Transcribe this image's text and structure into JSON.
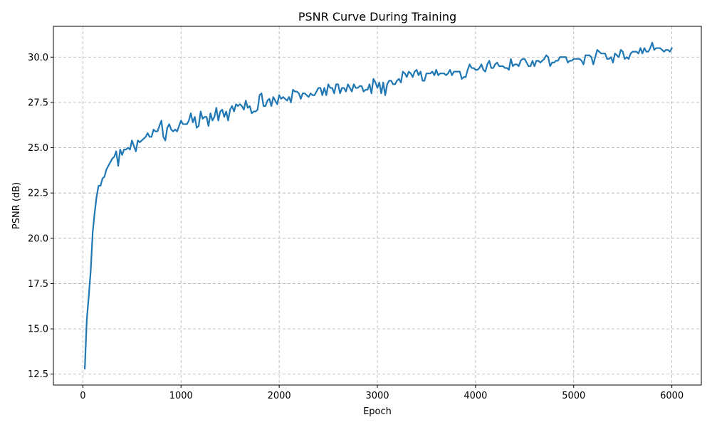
{
  "chart_data": {
    "type": "line",
    "title": "PSNR Curve During Training",
    "xlabel": "Epoch",
    "ylabel": "PSNR (dB)",
    "xlim": [
      -300,
      6300
    ],
    "ylim": [
      11.9,
      31.7
    ],
    "xticks": [
      0,
      1000,
      2000,
      3000,
      4000,
      5000,
      6000
    ],
    "xtick_labels": [
      "0",
      "1000",
      "2000",
      "3000",
      "4000",
      "5000",
      "6000"
    ],
    "yticks": [
      12.5,
      15.0,
      17.5,
      20.0,
      22.5,
      25.0,
      27.5,
      30.0
    ],
    "ytick_labels": [
      "12.5",
      "15.0",
      "17.5",
      "20.0",
      "22.5",
      "25.0",
      "27.5",
      "30.0"
    ],
    "grid": true,
    "color": "#1f77b4",
    "series": [
      {
        "x": [
          20,
          40,
          60,
          80,
          100,
          120,
          140,
          160,
          180,
          200,
          220,
          240,
          260,
          280,
          300,
          320,
          340,
          360,
          380,
          400,
          420,
          440,
          460,
          480,
          500,
          520,
          540,
          560,
          580,
          600,
          620,
          640,
          660,
          680,
          700,
          720,
          740,
          760,
          780,
          800,
          820,
          840,
          860,
          880,
          900,
          920,
          940,
          960,
          980,
          1000,
          1020,
          1040,
          1060,
          1080,
          1100,
          1120,
          1140,
          1160,
          1180,
          1200,
          1220,
          1240,
          1260,
          1280,
          1300,
          1320,
          1340,
          1360,
          1380,
          1400,
          1420,
          1440,
          1460,
          1480,
          1500,
          1520,
          1540,
          1560,
          1580,
          1600,
          1620,
          1640,
          1660,
          1680,
          1700,
          1720,
          1740,
          1760,
          1780,
          1800,
          1820,
          1840,
          1860,
          1880,
          1900,
          1920,
          1940,
          1960,
          1980,
          2000,
          2020,
          2040,
          2060,
          2080,
          2100,
          2120,
          2140,
          2160,
          2180,
          2200,
          2220,
          2240,
          2260,
          2280,
          2300,
          2320,
          2340,
          2360,
          2380,
          2400,
          2420,
          2440,
          2460,
          2480,
          2500,
          2520,
          2540,
          2560,
          2580,
          2600,
          2620,
          2640,
          2660,
          2680,
          2700,
          2720,
          2740,
          2760,
          2780,
          2800,
          2820,
          2840,
          2860,
          2880,
          2900,
          2920,
          2940,
          2960,
          2980,
          3000,
          3020,
          3040,
          3060,
          3080,
          3100,
          3120,
          3140,
          3160,
          3180,
          3200,
          3220,
          3240,
          3260,
          3280,
          3300,
          3320,
          3340,
          3360,
          3380,
          3400,
          3420,
          3440,
          3460,
          3480,
          3500,
          3520,
          3540,
          3560,
          3580,
          3600,
          3620,
          3640,
          3660,
          3680,
          3700,
          3720,
          3740,
          3760,
          3780,
          3800,
          3820,
          3840,
          3860,
          3880,
          3900,
          3920,
          3940,
          3960,
          3980,
          4000,
          4020,
          4040,
          4060,
          4080,
          4100,
          4120,
          4140,
          4160,
          4180,
          4200,
          4220,
          4240,
          4260,
          4280,
          4300,
          4320,
          4340,
          4360,
          4380,
          4400,
          4420,
          4440,
          4460,
          4480,
          4500,
          4520,
          4540,
          4560,
          4580,
          4600,
          4620,
          4640,
          4660,
          4680,
          4700,
          4720,
          4740,
          4760,
          4780,
          4800,
          4820,
          4840,
          4860,
          4880,
          4900,
          4920,
          4940,
          4960,
          4980,
          5000,
          5020,
          5040,
          5060,
          5080,
          5100,
          5120,
          5140,
          5160,
          5180,
          5200,
          5220,
          5240,
          5260,
          5280,
          5300,
          5320,
          5340,
          5360,
          5380,
          5400,
          5420,
          5440,
          5460,
          5480,
          5500,
          5520,
          5540,
          5560,
          5580,
          5600,
          5620,
          5640,
          5660,
          5680,
          5700,
          5720,
          5740,
          5760,
          5780,
          5800,
          5820,
          5840,
          5860,
          5880,
          5900,
          5920,
          5940,
          5960,
          5980,
          6000
        ],
        "y": [
          12.8,
          15.5,
          16.8,
          18.2,
          20.3,
          21.4,
          22.3,
          22.9,
          22.9,
          23.3,
          23.4,
          23.8,
          24.0,
          24.2,
          24.4,
          24.5,
          24.8,
          24.0,
          24.9,
          24.6,
          24.9,
          24.9,
          25.0,
          24.9,
          25.4,
          25.1,
          24.8,
          25.4,
          25.3,
          25.4,
          25.5,
          25.6,
          25.8,
          25.6,
          25.6,
          26.0,
          25.9,
          25.9,
          26.2,
          26.5,
          25.6,
          25.4,
          26.1,
          26.3,
          26.0,
          25.9,
          26.0,
          25.9,
          26.2,
          26.5,
          26.3,
          26.3,
          26.3,
          26.5,
          26.9,
          26.4,
          26.7,
          26.1,
          26.2,
          27.0,
          26.6,
          26.7,
          26.7,
          26.2,
          26.9,
          26.5,
          26.7,
          27.2,
          26.5,
          27.0,
          27.1,
          26.7,
          27.0,
          26.5,
          27.1,
          27.3,
          27.0,
          27.4,
          27.3,
          27.4,
          27.3,
          27.1,
          27.6,
          27.2,
          27.3,
          26.9,
          27.0,
          27.0,
          27.1,
          27.9,
          28.0,
          27.3,
          27.3,
          27.6,
          27.7,
          27.3,
          27.8,
          27.6,
          27.4,
          27.9,
          27.7,
          27.8,
          27.7,
          27.6,
          27.8,
          27.5,
          28.2,
          28.1,
          28.1,
          28.0,
          27.7,
          28.0,
          28.0,
          27.9,
          27.8,
          28.0,
          27.9,
          27.9,
          28.1,
          28.3,
          28.3,
          27.9,
          28.3,
          27.9,
          28.5,
          28.3,
          28.3,
          28.0,
          28.5,
          28.5,
          28.0,
          28.3,
          28.3,
          28.1,
          28.5,
          28.3,
          28.1,
          28.5,
          28.3,
          28.3,
          28.4,
          28.4,
          28.1,
          28.2,
          28.2,
          28.5,
          28.0,
          28.8,
          28.6,
          28.3,
          28.6,
          28.0,
          28.6,
          27.9,
          28.5,
          28.7,
          28.7,
          28.5,
          28.5,
          28.7,
          28.8,
          28.6,
          29.2,
          29.1,
          28.9,
          29.2,
          29.1,
          28.9,
          29.2,
          29.3,
          29.0,
          29.2,
          28.7,
          28.7,
          29.1,
          29.1,
          29.1,
          29.2,
          29.0,
          29.3,
          29.0,
          29.1,
          29.1,
          29.1,
          29.0,
          29.1,
          29.3,
          29.0,
          29.2,
          29.2,
          29.2,
          29.2,
          28.8,
          28.9,
          28.9,
          29.3,
          29.6,
          29.4,
          29.4,
          29.3,
          29.3,
          29.4,
          29.6,
          29.3,
          29.2,
          29.6,
          29.8,
          29.4,
          29.4,
          29.6,
          29.7,
          29.5,
          29.5,
          29.5,
          29.4,
          29.4,
          29.3,
          29.9,
          29.5,
          29.6,
          29.6,
          29.5,
          29.8,
          29.9,
          29.9,
          29.7,
          29.5,
          29.5,
          29.8,
          29.5,
          29.8,
          29.8,
          29.7,
          29.8,
          29.9,
          30.1,
          30.0,
          29.5,
          29.7,
          29.7,
          29.8,
          29.8,
          30.0,
          30.0,
          30.0,
          30.0,
          29.7,
          29.8,
          29.8,
          29.9,
          29.9,
          29.9,
          29.9,
          29.8,
          29.6,
          30.1,
          30.1,
          30.1,
          30.0,
          29.6,
          30.0,
          30.4,
          30.3,
          30.2,
          30.2,
          30.2,
          29.9,
          29.9,
          30.0,
          29.7,
          30.2,
          30.1,
          30.0,
          30.4,
          30.3,
          29.9,
          30.0,
          29.9,
          30.2,
          30.3,
          30.3,
          30.3,
          30.2,
          30.5,
          30.2,
          30.5,
          30.3,
          30.3,
          30.5,
          30.8,
          30.4,
          30.5,
          30.5,
          30.5,
          30.4,
          30.3,
          30.4,
          30.4,
          30.3,
          30.5
        ]
      }
    ]
  }
}
